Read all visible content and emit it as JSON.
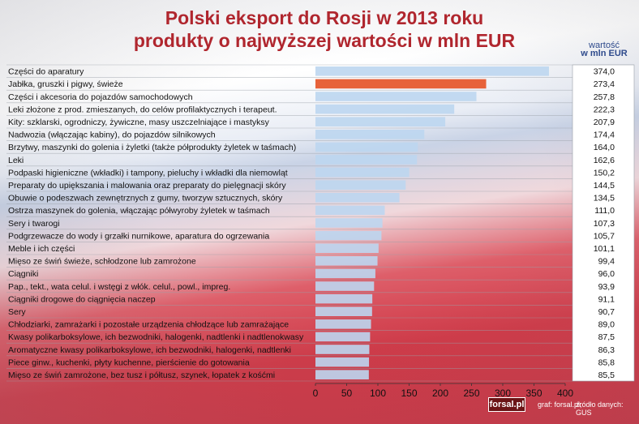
{
  "chart_data": {
    "type": "bar",
    "orientation": "horizontal",
    "title": "Polski eksport do Rosji w 2013 roku\nprodukty o najwyższej wartości w mln EUR",
    "title_lines": [
      "Polski eksport do Rosji w 2013 roku",
      "produkty o najwyższej wartości w mln EUR"
    ],
    "value_header_lines": [
      "wartość",
      "w mln EUR"
    ],
    "categories": [
      "Części do aparatury",
      "Jabłka, gruszki i pigwy, świeże",
      "Części i akcesoria do pojazdów samochodowych",
      "Leki złożone z prod. zmieszanych, do celów profilaktycznych i terapeut.",
      "Kity: szklarski, ogrodniczy, żywiczne, masy uszczelniające i mastyksy",
      "Nadwozia (włączając kabiny), do pojazdów silnikowych",
      "Brzytwy, maszynki do golenia i żyletki (także półprodukty żyletek w taśmach)",
      "Leki",
      "Podpaski higieniczne (wkładki) i tampony, pieluchy i wkładki dla niemowląt",
      "Preparaty do upiększania i malowania oraz preparaty do pielęgnacji skóry",
      "Obuwie o podeszwach zewnętrznych z gumy, tworzyw sztucznych, skóry",
      "Ostrza maszynek do golenia, włączając półwyroby żyletek w taśmach",
      "Sery i twarogi",
      "Podgrzewacze do wody i grzałki nurnikowe, aparatura do ogrzewania",
      "Meble i ich części",
      "Mięso ze świń świeże, schłodzone lub zamrożone",
      "Ciągniki",
      "Pap., tekt., wata celul. i wstęgi z włók. celul., powl., impreg.",
      "Ciągniki drogowe do ciągnięcia naczep",
      "Sery",
      "Chłodziarki, zamrażarki i pozostałe urządzenia chłodzące lub zamrażające",
      "Kwasy polikarboksylowe, ich bezwodniki, halogenki, nadtlenki i nadtlenokwasy",
      "Aromatyczne kwasy polikarboksylowe, ich bezwodniki, halogenki, nadtlenki",
      "Piece ginw., kuchenki, płyty kuchenne, pierścienie do gotowania",
      "Mięso ze świń zamrożone, bez tusz i półtusz, szynek, łopatek z kośćmi"
    ],
    "values": [
      374.0,
      273.4,
      257.8,
      222.3,
      207.9,
      174.4,
      164.0,
      162.6,
      150.2,
      144.5,
      134.5,
      111.0,
      107.3,
      105.7,
      101.1,
      99.4,
      96.0,
      93.9,
      91.1,
      90.7,
      89.0,
      87.5,
      86.3,
      85.8,
      85.5
    ],
    "value_labels": [
      "374,0",
      "273,4",
      "257,8",
      "222,3",
      "207,9",
      "174,4",
      "164,0",
      "162,6",
      "150,2",
      "144,5",
      "134,5",
      "111,0",
      "107,3",
      "105,7",
      "101,1",
      "99,4",
      "96,0",
      "93,9",
      "91,1",
      "90,7",
      "89,0",
      "87,5",
      "86,3",
      "85,8",
      "85,5"
    ],
    "highlight_index": 1,
    "xlim": [
      0,
      400
    ],
    "xticks": [
      0,
      50,
      100,
      150,
      200,
      250,
      300,
      350,
      400
    ],
    "xlabel": "",
    "ylabel": "",
    "grid": false,
    "legend": "none",
    "colors": {
      "bar": "#bcd6ef",
      "highlight": "#e7623a",
      "text": "#111111",
      "title": "#b0262e",
      "header": "#2e4a8c"
    }
  },
  "footer": {
    "logo": "forsal.pl",
    "credit": "graf: forsal.pl;",
    "source": "źródło danych: GUS"
  }
}
